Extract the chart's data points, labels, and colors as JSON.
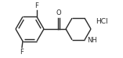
{
  "bg_color": "#ffffff",
  "line_color": "#2a2a2a",
  "line_width": 1.0,
  "font_size_label": 6.0,
  "font_size_hcl": 6.5,
  "figsize": [
    1.57,
    0.74
  ],
  "dpi": 100,
  "xlim": [
    0,
    157
  ],
  "ylim": [
    0,
    74
  ]
}
